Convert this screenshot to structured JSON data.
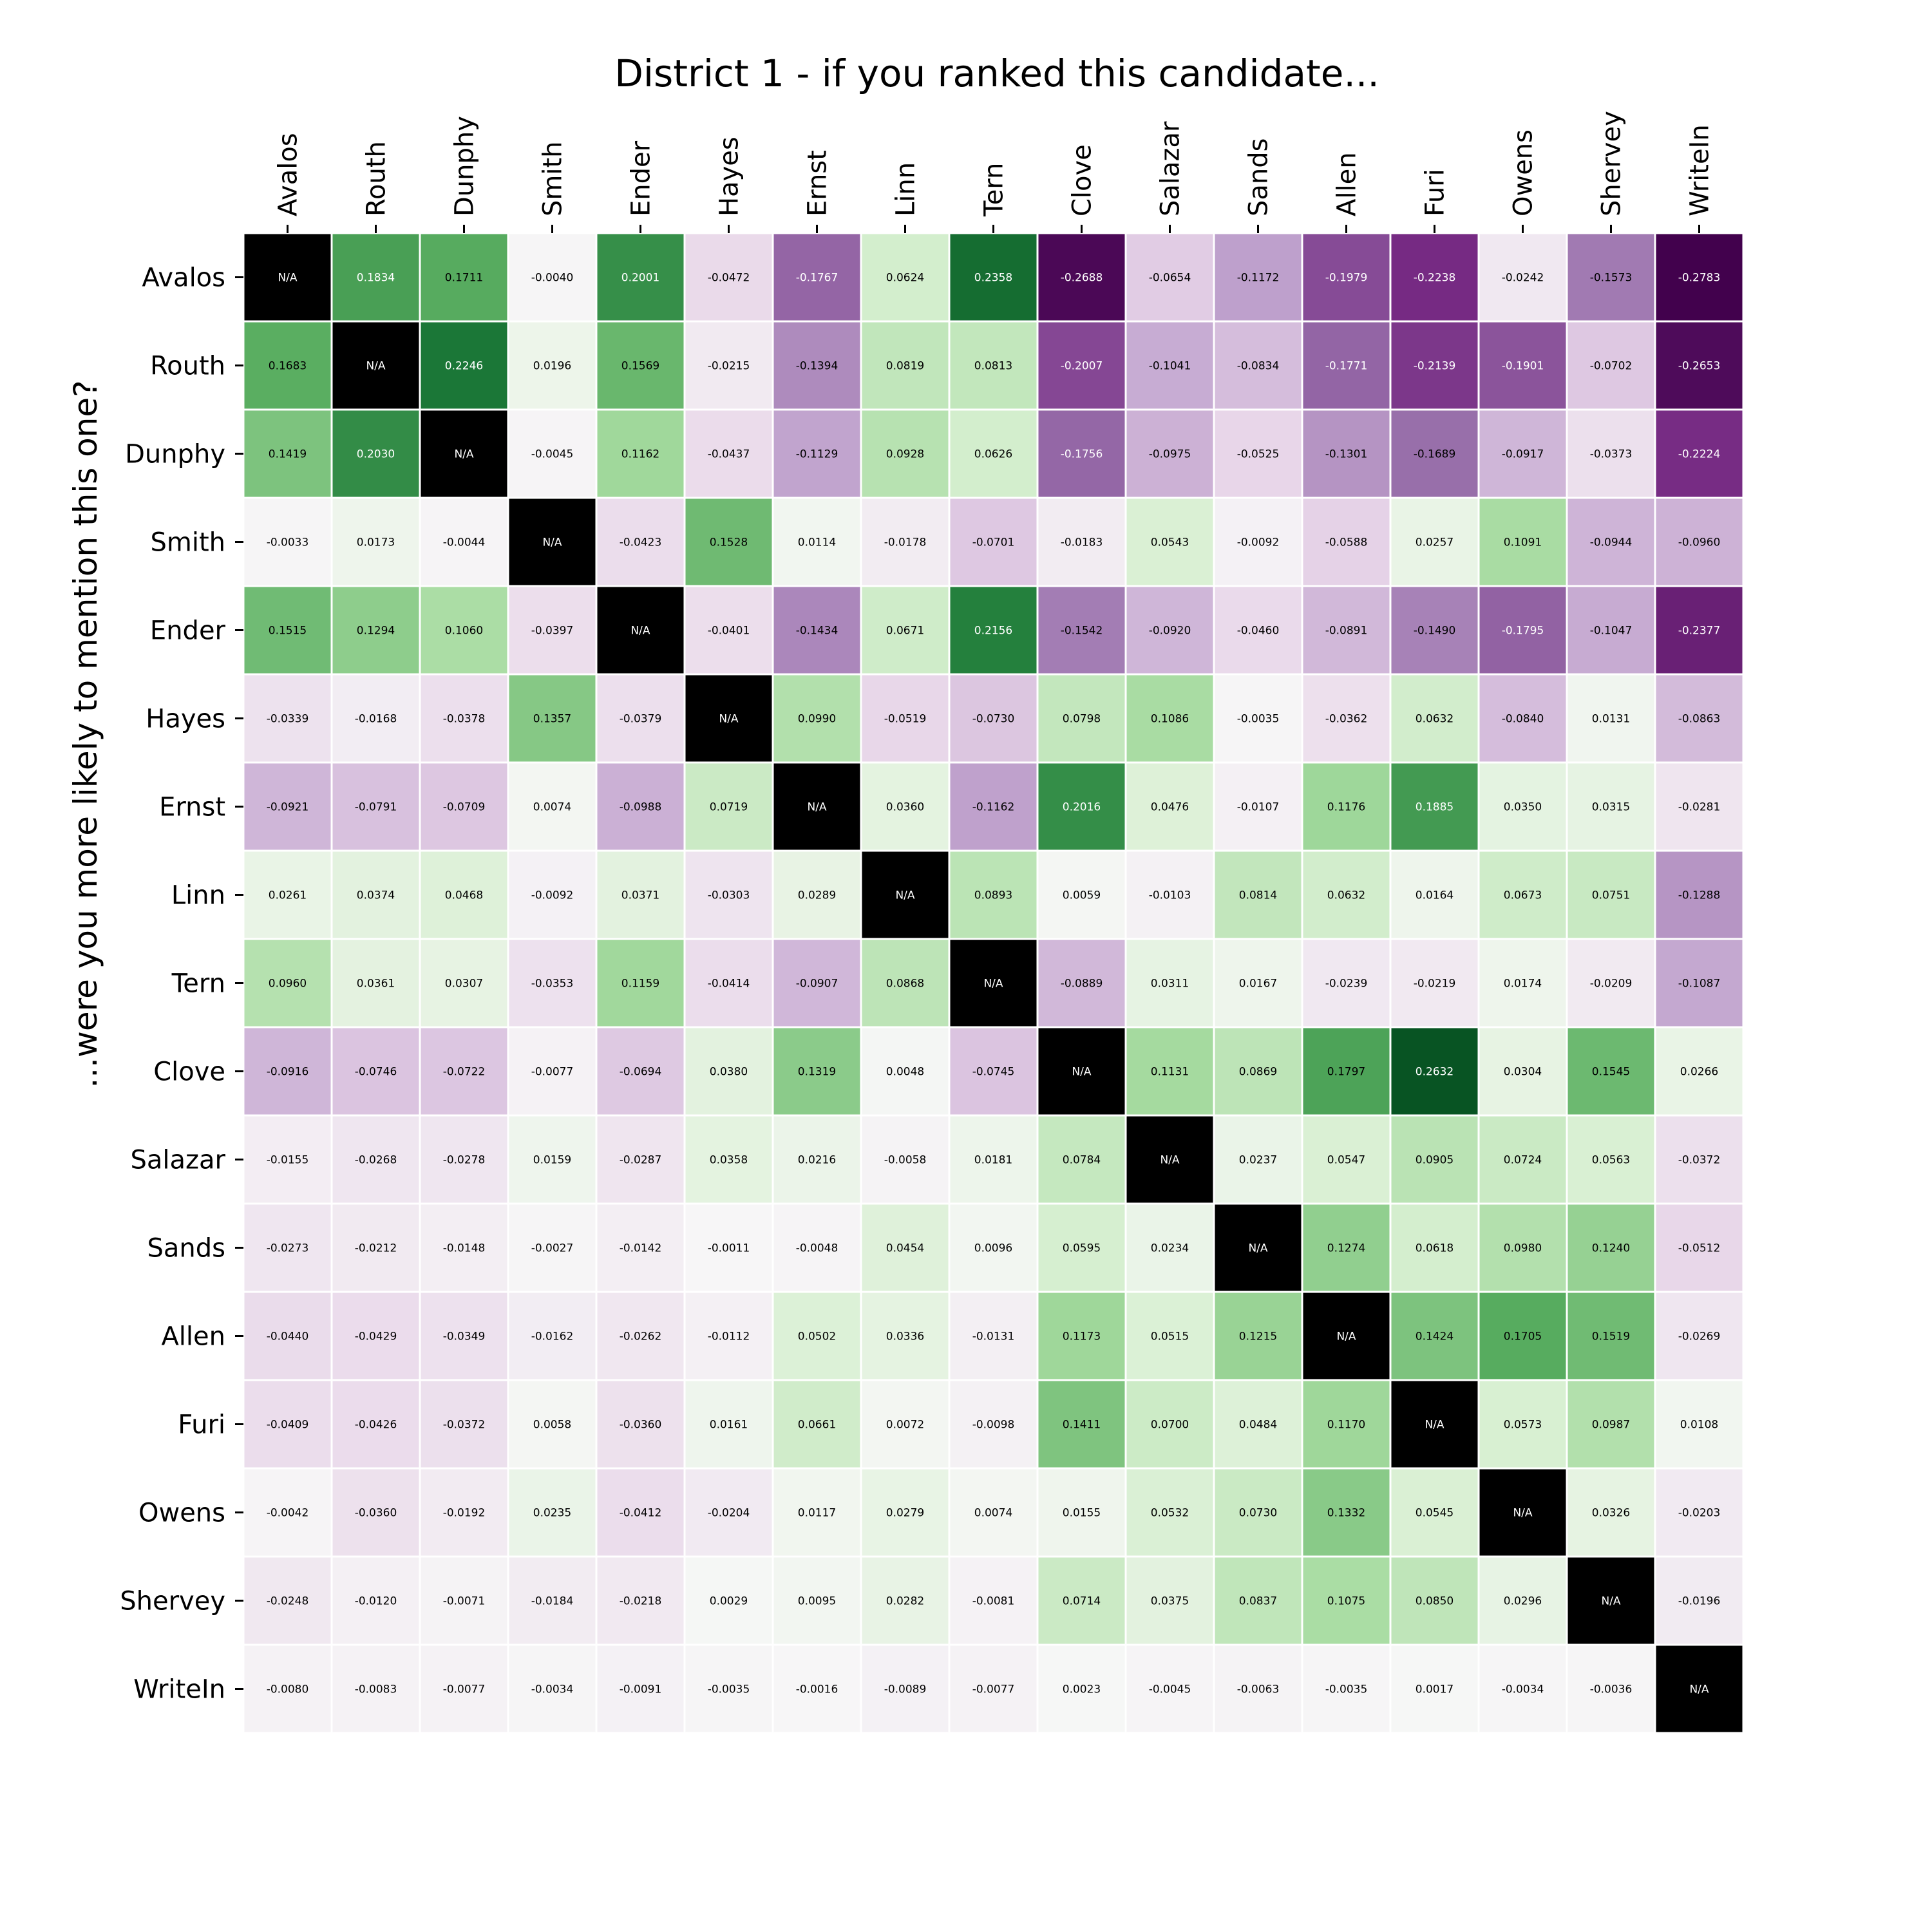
{
  "chart_data": {
    "type": "heatmap",
    "title": "District 1 - if you ranked this candidate...",
    "ylabel": "...were you more likely to mention this one?",
    "xlabel": "",
    "x_categories": [
      "Avalos",
      "Routh",
      "Dunphy",
      "Smith",
      "Ender",
      "Hayes",
      "Ernst",
      "Linn",
      "Tern",
      "Clove",
      "Salazar",
      "Sands",
      "Allen",
      "Furi",
      "Owens",
      "Shervey",
      "WriteIn"
    ],
    "y_categories": [
      "Avalos",
      "Routh",
      "Dunphy",
      "Smith",
      "Ender",
      "Hayes",
      "Ernst",
      "Linn",
      "Tern",
      "Clove",
      "Salazar",
      "Sands",
      "Allen",
      "Furi",
      "Owens",
      "Shervey",
      "WriteIn"
    ],
    "x_axis_position": "top",
    "missing_label": "N/A",
    "colormap": "PRGn",
    "color_range": [
      -0.28,
      0.28
    ],
    "missing_color": "#000000",
    "values": [
      [
        null,
        "0.1834",
        "0.1711",
        "-0.0040",
        "0.2001",
        "-0.0472",
        "-0.1767",
        "0.0624",
        "0.2358",
        "-0.2688",
        "-0.0654",
        "-0.1172",
        "-0.1979",
        "-0.2238",
        "-0.0242",
        "-0.1573",
        "-0.2783"
      ],
      [
        "0.1683",
        null,
        "0.2246",
        "0.0196",
        "0.1569",
        "-0.0215",
        "-0.1394",
        "0.0819",
        "0.0813",
        "-0.2007",
        "-0.1041",
        "-0.0834",
        "-0.1771",
        "-0.2139",
        "-0.1901",
        "-0.0702",
        "-0.2653"
      ],
      [
        "0.1419",
        "0.2030",
        null,
        "-0.0045",
        "0.1162",
        "-0.0437",
        "-0.1129",
        "0.0928",
        "0.0626",
        "-0.1756",
        "-0.0975",
        "-0.0525",
        "-0.1301",
        "-0.1689",
        "-0.0917",
        "-0.0373",
        "-0.2224"
      ],
      [
        "-0.0033",
        "0.0173",
        "-0.0044",
        null,
        "-0.0423",
        "0.1528",
        "0.0114",
        "-0.0178",
        "-0.0701",
        "-0.0183",
        "0.0543",
        "-0.0092",
        "-0.0588",
        "0.0257",
        "0.1091",
        "-0.0944",
        "-0.0960"
      ],
      [
        "0.1515",
        "0.1294",
        "0.1060",
        "-0.0397",
        null,
        "-0.0401",
        "-0.1434",
        "0.0671",
        "0.2156",
        "-0.1542",
        "-0.0920",
        "-0.0460",
        "-0.0891",
        "-0.1490",
        "-0.1795",
        "-0.1047",
        "-0.2377"
      ],
      [
        "-0.0339",
        "-0.0168",
        "-0.0378",
        "0.1357",
        "-0.0379",
        null,
        "0.0990",
        "-0.0519",
        "-0.0730",
        "0.0798",
        "0.1086",
        "-0.0035",
        "-0.0362",
        "0.0632",
        "-0.0840",
        "0.0131",
        "-0.0863"
      ],
      [
        "-0.0921",
        "-0.0791",
        "-0.0709",
        "0.0074",
        "-0.0988",
        "0.0719",
        null,
        "0.0360",
        "-0.1162",
        "0.2016",
        "0.0476",
        "-0.0107",
        "0.1176",
        "0.1885",
        "0.0350",
        "0.0315",
        "-0.0281"
      ],
      [
        "0.0261",
        "0.0374",
        "0.0468",
        "-0.0092",
        "0.0371",
        "-0.0303",
        "0.0289",
        null,
        "0.0893",
        "0.0059",
        "-0.0103",
        "0.0814",
        "0.0632",
        "0.0164",
        "0.0673",
        "0.0751",
        "-0.1288"
      ],
      [
        "0.0960",
        "0.0361",
        "0.0307",
        "-0.0353",
        "0.1159",
        "-0.0414",
        "-0.0907",
        "0.0868",
        null,
        "-0.0889",
        "0.0311",
        "0.0167",
        "-0.0239",
        "-0.0219",
        "0.0174",
        "-0.0209",
        "-0.1087"
      ],
      [
        "-0.0916",
        "-0.0746",
        "-0.0722",
        "-0.0077",
        "-0.0694",
        "0.0380",
        "0.1319",
        "0.0048",
        "-0.0745",
        null,
        "0.1131",
        "0.0869",
        "0.1797",
        "0.2632",
        "0.0304",
        "0.1545",
        "0.0266"
      ],
      [
        "-0.0155",
        "-0.0268",
        "-0.0278",
        "0.0159",
        "-0.0287",
        "0.0358",
        "0.0216",
        "-0.0058",
        "0.0181",
        "0.0784",
        null,
        "0.0237",
        "0.0547",
        "0.0905",
        "0.0724",
        "0.0563",
        "-0.0372"
      ],
      [
        "-0.0273",
        "-0.0212",
        "-0.0148",
        "-0.0027",
        "-0.0142",
        "-0.0011",
        "-0.0048",
        "0.0454",
        "0.0096",
        "0.0595",
        "0.0234",
        null,
        "0.1274",
        "0.0618",
        "0.0980",
        "0.1240",
        "-0.0512"
      ],
      [
        "-0.0440",
        "-0.0429",
        "-0.0349",
        "-0.0162",
        "-0.0262",
        "-0.0112",
        "0.0502",
        "0.0336",
        "-0.0131",
        "0.1173",
        "0.0515",
        "0.1215",
        null,
        "0.1424",
        "0.1705",
        "0.1519",
        "-0.0269"
      ],
      [
        "-0.0409",
        "-0.0426",
        "-0.0372",
        "0.0058",
        "-0.0360",
        "0.0161",
        "0.0661",
        "0.0072",
        "-0.0098",
        "0.1411",
        "0.0700",
        "0.0484",
        "0.1170",
        null,
        "0.0573",
        "0.0987",
        "0.0108"
      ],
      [
        "-0.0042",
        "-0.0360",
        "-0.0192",
        "0.0235",
        "-0.0412",
        "-0.0204",
        "0.0117",
        "0.0279",
        "0.0074",
        "0.0155",
        "0.0532",
        "0.0730",
        "0.1332",
        "0.0545",
        null,
        "0.0326",
        "-0.0203"
      ],
      [
        "-0.0248",
        "-0.0120",
        "-0.0071",
        "-0.0184",
        "-0.0218",
        "0.0029",
        "0.0095",
        "0.0282",
        "-0.0081",
        "0.0714",
        "0.0375",
        "0.0837",
        "0.1075",
        "0.0850",
        "0.0296",
        null,
        "-0.0196"
      ],
      [
        "-0.0080",
        "-0.0083",
        "-0.0077",
        "-0.0034",
        "-0.0091",
        "-0.0035",
        "-0.0016",
        "-0.0089",
        "-0.0077",
        "0.0023",
        "-0.0045",
        "-0.0063",
        "-0.0035",
        "0.0017",
        "-0.0034",
        "-0.0036",
        null
      ]
    ]
  }
}
